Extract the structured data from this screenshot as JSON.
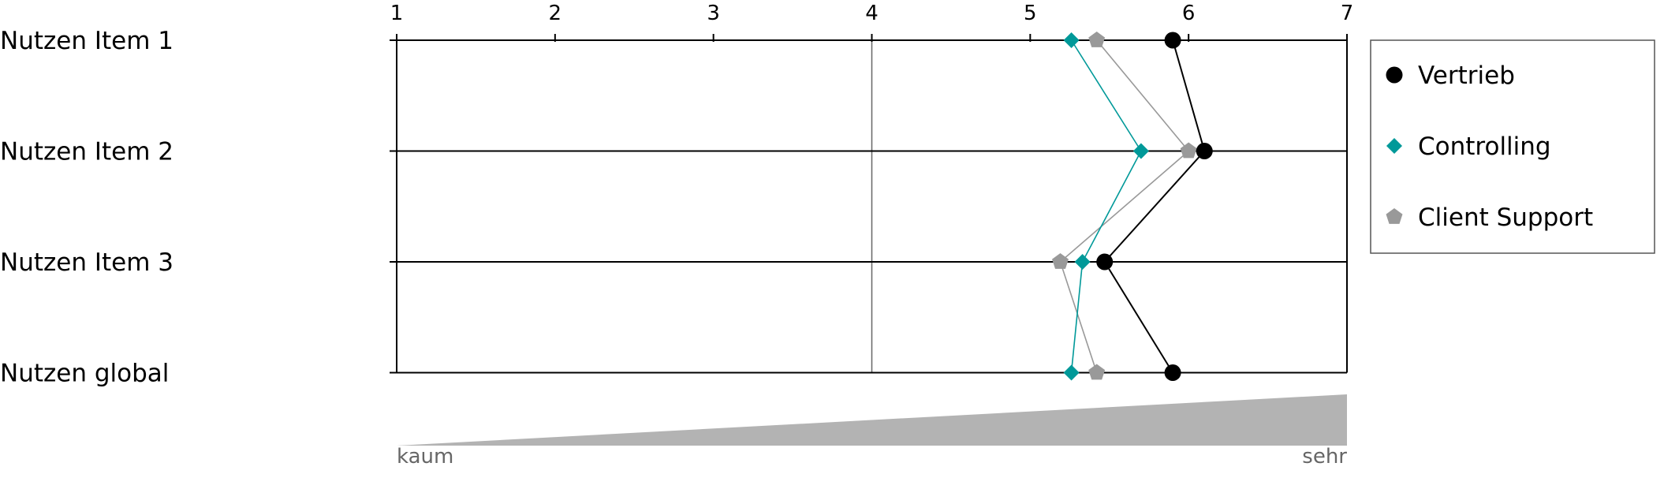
{
  "chart_data": {
    "type": "line",
    "orientation": "horizontal",
    "x_ticks": [
      1,
      2,
      3,
      4,
      5,
      6,
      7
    ],
    "xlim": [
      1,
      7
    ],
    "reference_line": 4,
    "categories": [
      "Nutzen Item 1",
      "Nutzen Item 2",
      "Nutzen Item 3",
      "Nutzen global"
    ],
    "series": [
      {
        "name": "Vertrieb",
        "color": "#000000",
        "marker": "circle",
        "values": [
          5.9,
          6.1,
          5.47,
          5.9
        ]
      },
      {
        "name": "Controlling",
        "color": "#009999",
        "marker": "diamond",
        "values": [
          5.26,
          5.7,
          5.33,
          5.26
        ]
      },
      {
        "name": "Client Support",
        "color": "#999999",
        "marker": "pentagon",
        "values": [
          5.42,
          6.0,
          5.19,
          5.42
        ]
      }
    ],
    "scale_labels": {
      "low": "kaum",
      "high": "sehr"
    },
    "legend_position": "right",
    "grid": false
  }
}
